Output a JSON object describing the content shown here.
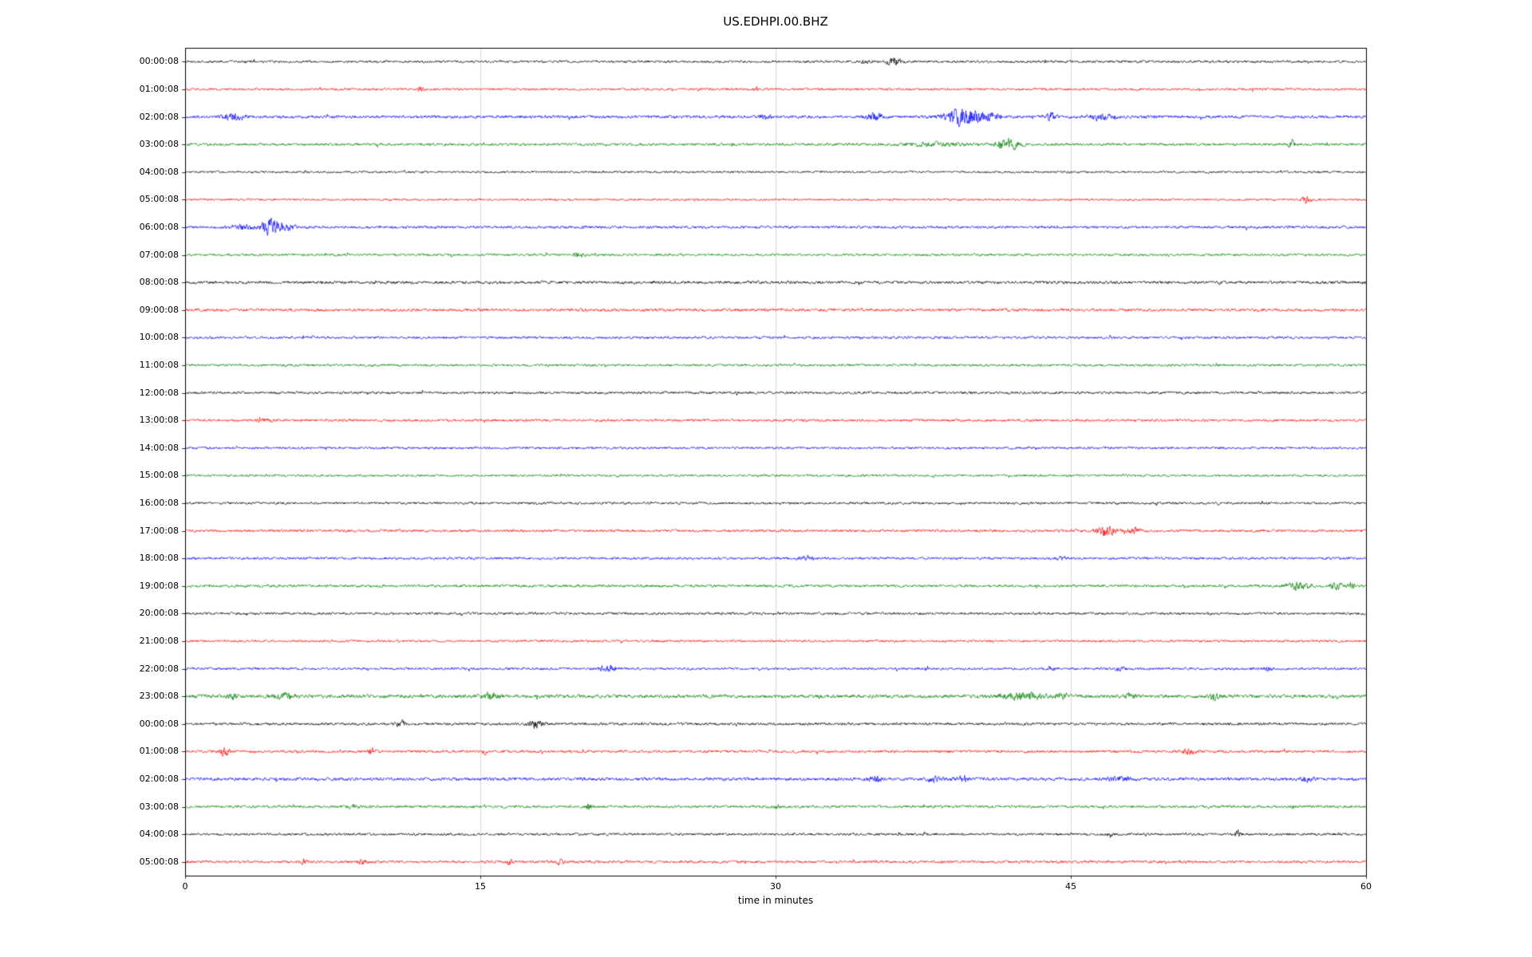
{
  "title": "US.EDHPI.00.BHZ",
  "xlabel": "time in minutes",
  "chart_data": {
    "type": "line",
    "title": "US.EDHPI.00.BHZ",
    "xlabel": "time in minutes",
    "ylabel": "",
    "xlim": [
      0,
      60
    ],
    "xticks": [
      0,
      15,
      30,
      45,
      60
    ],
    "gridlines_x": [
      15,
      30,
      45
    ],
    "grid": true,
    "legend": "none",
    "colors": {
      "black": "#000000",
      "red": "#ff0000",
      "blue": "#0000ff",
      "green": "#008000",
      "grid": "#d9d9d9"
    },
    "color_cycle": [
      "black",
      "red",
      "blue",
      "green"
    ],
    "description": "Helicorder / drum-record seismogram: 30 hourly traces, one hour per row, amplitude as fuzzy noise band with transient event bursts. Events given as center minute t, peak amplitude amp (px), width w (minutes).",
    "rows": [
      {
        "label": "00:00:08",
        "color": "black",
        "noise": 2.1,
        "events": [
          {
            "t": 34.5,
            "amp": 3,
            "w": 0.3
          },
          {
            "t": 36.0,
            "amp": 6,
            "w": 0.5
          }
        ]
      },
      {
        "label": "01:00:08",
        "color": "red",
        "noise": 2.0,
        "events": [
          {
            "t": 12.0,
            "amp": 5,
            "w": 0.2
          },
          {
            "t": 29.0,
            "amp": 4,
            "w": 0.15
          }
        ]
      },
      {
        "label": "02:00:08",
        "color": "blue",
        "noise": 2.6,
        "events": [
          {
            "t": 2.5,
            "amp": 5,
            "w": 0.8
          },
          {
            "t": 29.5,
            "amp": 3,
            "w": 0.4
          },
          {
            "t": 35.0,
            "amp": 6,
            "w": 0.6
          },
          {
            "t": 39.5,
            "amp": 14,
            "w": 1.2
          },
          {
            "t": 40.8,
            "amp": 7,
            "w": 0.8
          },
          {
            "t": 44.0,
            "amp": 8,
            "w": 0.3
          },
          {
            "t": 46.5,
            "amp": 4,
            "w": 1.0
          }
        ],
        "note": ""
      },
      {
        "label": "03:00:08",
        "color": "green",
        "noise": 2.3,
        "events": [
          {
            "t": 38.0,
            "amp": 2.5,
            "w": 2.0
          },
          {
            "t": 41.8,
            "amp": 9,
            "w": 0.8
          },
          {
            "t": 56.2,
            "amp": 7,
            "w": 0.2
          }
        ]
      },
      {
        "label": "04:00:08",
        "color": "black",
        "noise": 1.9,
        "events": []
      },
      {
        "label": "05:00:08",
        "color": "red",
        "noise": 1.9,
        "events": [
          {
            "t": 57.0,
            "amp": 5,
            "w": 0.4
          }
        ]
      },
      {
        "label": "06:00:08",
        "color": "blue",
        "noise": 2.3,
        "events": [
          {
            "t": 3.0,
            "amp": 4,
            "w": 0.8
          },
          {
            "t": 4.3,
            "amp": 13,
            "w": 0.6
          },
          {
            "t": 5.0,
            "amp": 5,
            "w": 0.9
          }
        ]
      },
      {
        "label": "07:00:08",
        "color": "green",
        "noise": 2.1,
        "events": [
          {
            "t": 20.0,
            "amp": 2.5,
            "w": 0.5
          }
        ]
      },
      {
        "label": "08:00:08",
        "color": "black",
        "noise": 2.5,
        "events": []
      },
      {
        "label": "09:00:08",
        "color": "red",
        "noise": 2.5,
        "events": []
      },
      {
        "label": "10:00:08",
        "color": "blue",
        "noise": 2.2,
        "events": []
      },
      {
        "label": "11:00:08",
        "color": "green",
        "noise": 2.2,
        "events": []
      },
      {
        "label": "12:00:08",
        "color": "black",
        "noise": 2.2,
        "events": []
      },
      {
        "label": "13:00:08",
        "color": "red",
        "noise": 2.2,
        "events": [
          {
            "t": 4.0,
            "amp": 2.5,
            "w": 0.5
          }
        ]
      },
      {
        "label": "14:00:08",
        "color": "blue",
        "noise": 2.1,
        "events": []
      },
      {
        "label": "15:00:08",
        "color": "green",
        "noise": 2.0,
        "events": []
      },
      {
        "label": "16:00:08",
        "color": "black",
        "noise": 2.1,
        "events": []
      },
      {
        "label": "17:00:08",
        "color": "red",
        "noise": 2.3,
        "events": [
          {
            "t": 46.8,
            "amp": 9,
            "w": 0.6
          },
          {
            "t": 48.2,
            "amp": 4,
            "w": 0.5
          }
        ]
      },
      {
        "label": "18:00:08",
        "color": "blue",
        "noise": 2.2,
        "events": [
          {
            "t": 31.5,
            "amp": 3,
            "w": 0.5
          },
          {
            "t": 44.5,
            "amp": 2.5,
            "w": 0.4
          }
        ]
      },
      {
        "label": "19:00:08",
        "color": "green",
        "noise": 2.4,
        "events": [
          {
            "t": 56.5,
            "amp": 6,
            "w": 0.8
          },
          {
            "t": 58.5,
            "amp": 5,
            "w": 0.4
          },
          {
            "t": 59.3,
            "amp": 6,
            "w": 0.3
          }
        ]
      },
      {
        "label": "20:00:08",
        "color": "black",
        "noise": 2.2,
        "events": []
      },
      {
        "label": "21:00:08",
        "color": "red",
        "noise": 2.0,
        "events": []
      },
      {
        "label": "22:00:08",
        "color": "blue",
        "noise": 2.2,
        "events": [
          {
            "t": 21.5,
            "amp": 5,
            "w": 0.6
          },
          {
            "t": 44.0,
            "amp": 3,
            "w": 0.3
          },
          {
            "t": 47.5,
            "amp": 3,
            "w": 0.3
          },
          {
            "t": 55.0,
            "amp": 2.5,
            "w": 0.3
          }
        ]
      },
      {
        "label": "23:00:08",
        "color": "green",
        "noise": 3.0,
        "events": [
          {
            "t": 2.5,
            "amp": 4,
            "w": 0.5
          },
          {
            "t": 5.0,
            "amp": 4,
            "w": 0.8
          },
          {
            "t": 15.5,
            "amp": 4,
            "w": 0.6
          },
          {
            "t": 42.5,
            "amp": 5,
            "w": 1.5
          },
          {
            "t": 44.5,
            "amp": 4,
            "w": 0.5
          },
          {
            "t": 48.0,
            "amp": 4,
            "w": 0.4
          },
          {
            "t": 52.3,
            "amp": 6,
            "w": 0.3
          }
        ]
      },
      {
        "label": "00:00:08",
        "color": "black",
        "noise": 2.3,
        "events": [
          {
            "t": 11.0,
            "amp": 4,
            "w": 0.4
          },
          {
            "t": 17.8,
            "amp": 6,
            "w": 0.5
          }
        ]
      },
      {
        "label": "01:00:08",
        "color": "red",
        "noise": 2.3,
        "events": [
          {
            "t": 2.0,
            "amp": 7,
            "w": 0.3
          },
          {
            "t": 9.5,
            "amp": 6,
            "w": 0.25
          },
          {
            "t": 15.2,
            "amp": 4,
            "w": 0.2
          },
          {
            "t": 51.0,
            "amp": 4,
            "w": 0.6
          }
        ]
      },
      {
        "label": "02:00:08",
        "color": "blue",
        "noise": 2.7,
        "events": [
          {
            "t": 35.0,
            "amp": 4,
            "w": 0.5
          },
          {
            "t": 38.0,
            "amp": 3,
            "w": 0.6
          },
          {
            "t": 39.5,
            "amp": 4,
            "w": 0.5
          },
          {
            "t": 47.5,
            "amp": 4,
            "w": 0.8
          },
          {
            "t": 57.0,
            "amp": 3,
            "w": 0.5
          }
        ]
      },
      {
        "label": "03:00:08",
        "color": "green",
        "noise": 2.3,
        "events": [
          {
            "t": 8.5,
            "amp": 3,
            "w": 0.5
          },
          {
            "t": 20.5,
            "amp": 5,
            "w": 0.2
          },
          {
            "t": 30.0,
            "amp": 3,
            "w": 0.3
          }
        ]
      },
      {
        "label": "04:00:08",
        "color": "black",
        "noise": 2.2,
        "events": [
          {
            "t": 47.0,
            "amp": 4,
            "w": 0.2
          },
          {
            "t": 53.5,
            "amp": 6,
            "w": 0.2
          }
        ]
      },
      {
        "label": "05:00:08",
        "color": "red",
        "noise": 2.3,
        "events": [
          {
            "t": 6.0,
            "amp": 4,
            "w": 0.2
          },
          {
            "t": 9.0,
            "amp": 4,
            "w": 0.3
          },
          {
            "t": 16.5,
            "amp": 5,
            "w": 0.2
          },
          {
            "t": 19.0,
            "amp": 4,
            "w": 0.3
          }
        ]
      }
    ]
  }
}
